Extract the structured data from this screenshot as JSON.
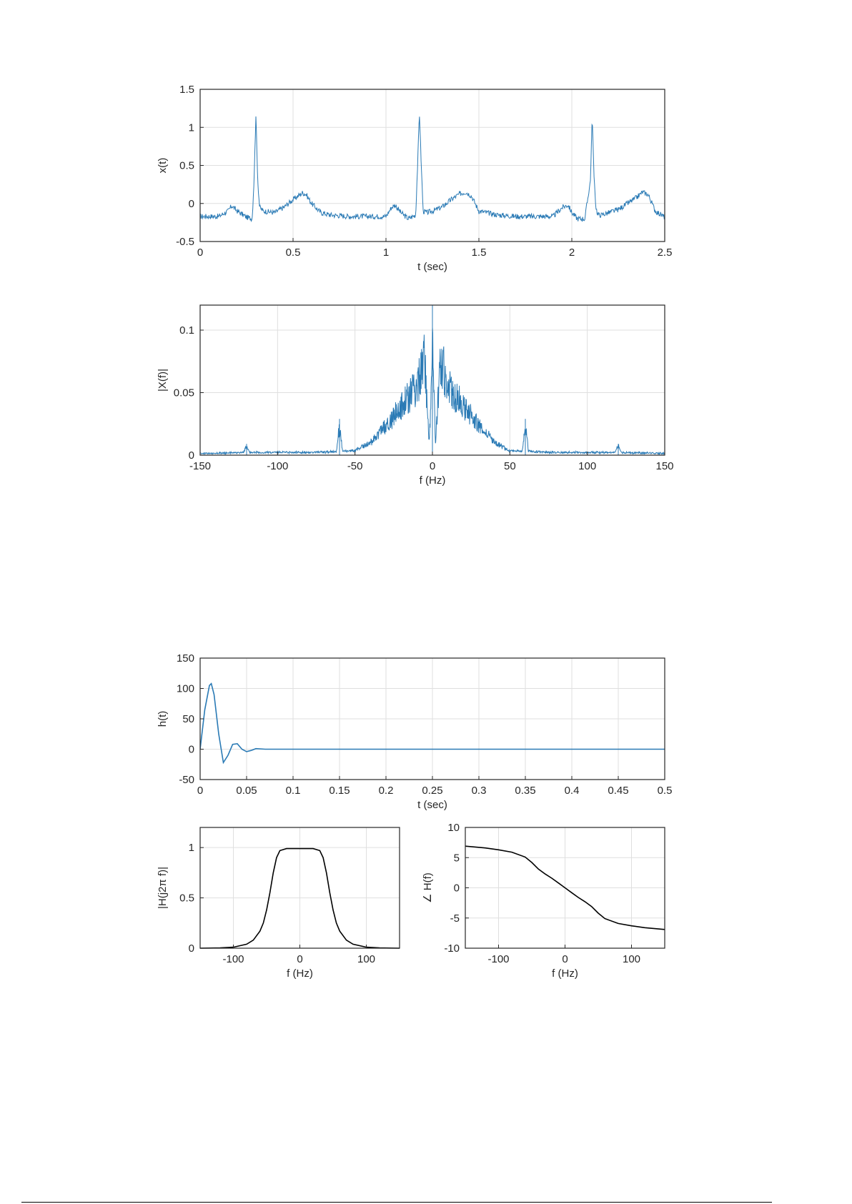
{
  "chart_data": [
    {
      "type": "line",
      "id": "ecg-time",
      "xlabel": "t (sec)",
      "ylabel": "x(t)",
      "xlim": [
        0,
        2.5
      ],
      "ylim": [
        -0.5,
        1.5
      ],
      "xticks": [
        0,
        0.5,
        1,
        1.5,
        2,
        2.5
      ],
      "xtick_labels": [
        "0",
        "0.5",
        "1",
        "1.5",
        "2",
        "2.5"
      ],
      "yticks": [
        -0.5,
        0,
        0.5,
        1,
        1.5
      ],
      "ytick_labels": [
        "-0.5",
        "0",
        "0.5",
        "1",
        "1.5"
      ],
      "grid": true,
      "color": "#2a7ab5",
      "series": [
        {
          "x": [
            0,
            0.1,
            0.15,
            0.17,
            0.2,
            0.25,
            0.28,
            0.29,
            0.3,
            0.31,
            0.32,
            0.34,
            0.4,
            0.45,
            0.5,
            0.55,
            0.57,
            0.6,
            0.65,
            0.7,
            0.8,
            0.9,
            1.0,
            1.03,
            1.05,
            1.08,
            1.12,
            1.16,
            1.17,
            1.18,
            1.19,
            1.2,
            1.22,
            1.25,
            1.3,
            1.35,
            1.4,
            1.43,
            1.46,
            1.5,
            1.6,
            1.7,
            1.8,
            1.9,
            1.95,
            1.98,
            2.0,
            2.03,
            2.07,
            2.1,
            2.11,
            2.12,
            2.13,
            2.14,
            2.16,
            2.2,
            2.25,
            2.3,
            2.35,
            2.38,
            2.41,
            2.45,
            2.5
          ],
          "y": [
            -0.17,
            -0.17,
            -0.1,
            -0.03,
            -0.1,
            -0.18,
            -0.2,
            0.3,
            1.17,
            0.3,
            -0.05,
            -0.1,
            -0.12,
            -0.05,
            0.05,
            0.14,
            0.12,
            0.0,
            -0.12,
            -0.15,
            -0.17,
            -0.17,
            -0.17,
            -0.05,
            -0.02,
            -0.12,
            -0.2,
            -0.15,
            0.5,
            1.2,
            0.5,
            -0.1,
            -0.12,
            -0.1,
            -0.05,
            0.05,
            0.13,
            0.15,
            0.1,
            -0.1,
            -0.15,
            -0.17,
            -0.17,
            -0.17,
            -0.05,
            -0.02,
            -0.12,
            -0.2,
            -0.2,
            0.3,
            1.15,
            0.3,
            -0.05,
            -0.15,
            -0.15,
            -0.12,
            -0.08,
            0.0,
            0.08,
            0.15,
            0.12,
            -0.1,
            -0.18
          ]
        }
      ]
    },
    {
      "type": "line",
      "id": "ecg-spectrum",
      "xlabel": "f (Hz)",
      "ylabel": "|X(f)|",
      "xlim": [
        -150,
        150
      ],
      "ylim": [
        0,
        0.12
      ],
      "xticks": [
        -150,
        -100,
        -50,
        0,
        50,
        100,
        150
      ],
      "xtick_labels": [
        "-150",
        "-100",
        "-50",
        "0",
        "50",
        "100",
        "150"
      ],
      "yticks": [
        0,
        0.05,
        0.1
      ],
      "ytick_labels": [
        "0",
        "0.05",
        "0.1"
      ],
      "grid": true,
      "color": "#2a7ab5",
      "series": [
        {
          "x": [
            -150,
            -122,
            -120,
            -118,
            -80,
            -62,
            -60,
            -58,
            -50,
            -40,
            -30,
            -20,
            -10,
            -5,
            -2,
            0,
            2,
            5,
            10,
            20,
            30,
            40,
            50,
            58,
            60,
            62,
            80,
            118,
            120,
            122,
            150
          ],
          "y": [
            0.001,
            0.002,
            0.009,
            0.002,
            0.002,
            0.003,
            0.029,
            0.003,
            0.004,
            0.012,
            0.03,
            0.05,
            0.07,
            0.1,
            0.01,
            0.12,
            0.01,
            0.1,
            0.07,
            0.05,
            0.03,
            0.012,
            0.004,
            0.003,
            0.029,
            0.003,
            0.002,
            0.002,
            0.009,
            0.002,
            0.001
          ]
        }
      ],
      "peaks": [
        [
          -120,
          0.009
        ],
        [
          -60,
          0.029
        ],
        [
          0,
          0.12
        ],
        [
          60,
          0.029
        ],
        [
          120,
          0.009
        ]
      ]
    },
    {
      "type": "line",
      "id": "impulse-response",
      "xlabel": "t (sec)",
      "ylabel": "h(t)",
      "xlim": [
        0,
        0.5
      ],
      "ylim": [
        -50,
        150
      ],
      "xticks": [
        0,
        0.05,
        0.1,
        0.15,
        0.2,
        0.25,
        0.3,
        0.35,
        0.4,
        0.45,
        0.5
      ],
      "xtick_labels": [
        "0",
        "0.05",
        "0.1",
        "0.15",
        "0.2",
        "0.25",
        "0.3",
        "0.35",
        "0.4",
        "0.45",
        "0.5"
      ],
      "yticks": [
        -50,
        0,
        50,
        100,
        150
      ],
      "ytick_labels": [
        "-50",
        "0",
        "50",
        "100",
        "150"
      ],
      "grid": true,
      "color": "#2a7ab5",
      "series": [
        {
          "x": [
            0,
            0.005,
            0.01,
            0.012,
            0.015,
            0.02,
            0.025,
            0.03,
            0.035,
            0.04,
            0.045,
            0.05,
            0.055,
            0.06,
            0.07,
            0.08,
            0.5
          ],
          "y": [
            0,
            65,
            105,
            108,
            90,
            25,
            -22,
            -10,
            8,
            9,
            0,
            -4,
            -2,
            1,
            0,
            0,
            0
          ]
        }
      ]
    },
    {
      "type": "line",
      "id": "magnitude-response",
      "xlabel": "f (Hz)",
      "ylabel": "|H(j2π f)|",
      "xlim": [
        -150,
        150
      ],
      "ylim": [
        0,
        1.2
      ],
      "xticks": [
        -100,
        0,
        100
      ],
      "xtick_labels": [
        "-100",
        "0",
        "100"
      ],
      "yticks": [
        0,
        0.5,
        1
      ],
      "ytick_labels": [
        "0",
        "0.5",
        "1"
      ],
      "grid": true,
      "color": "#000000",
      "series": [
        {
          "x": [
            -150,
            -120,
            -100,
            -80,
            -70,
            -60,
            -55,
            -50,
            -45,
            -40,
            -35,
            -30,
            -20,
            0,
            20,
            30,
            35,
            40,
            45,
            50,
            55,
            60,
            70,
            80,
            100,
            120,
            150
          ],
          "y": [
            0,
            0.003,
            0.01,
            0.04,
            0.08,
            0.17,
            0.25,
            0.38,
            0.55,
            0.75,
            0.9,
            0.97,
            0.99,
            0.99,
            0.99,
            0.97,
            0.9,
            0.75,
            0.55,
            0.38,
            0.25,
            0.17,
            0.08,
            0.04,
            0.01,
            0.003,
            0
          ]
        }
      ]
    },
    {
      "type": "line",
      "id": "phase-response",
      "xlabel": "f (Hz)",
      "ylabel": "∠ H(f)",
      "xlim": [
        -150,
        150
      ],
      "ylim": [
        -10,
        10
      ],
      "xticks": [
        -100,
        0,
        100
      ],
      "xtick_labels": [
        "-100",
        "0",
        "100"
      ],
      "yticks": [
        -10,
        -5,
        0,
        5,
        10
      ],
      "ytick_labels": [
        "-10",
        "-5",
        "0",
        "5",
        "10"
      ],
      "grid": true,
      "color": "#000000",
      "series": [
        {
          "x": [
            -150,
            -120,
            -100,
            -80,
            -60,
            -50,
            -40,
            -30,
            -20,
            -10,
            0,
            10,
            20,
            30,
            40,
            50,
            60,
            80,
            100,
            120,
            150
          ],
          "y": [
            6.9,
            6.6,
            6.3,
            5.9,
            5.1,
            4.2,
            3.1,
            2.3,
            1.6,
            0.8,
            0,
            -0.8,
            -1.6,
            -2.3,
            -3.1,
            -4.2,
            -5.1,
            -5.9,
            -6.3,
            -6.6,
            -6.9
          ]
        }
      ]
    }
  ]
}
